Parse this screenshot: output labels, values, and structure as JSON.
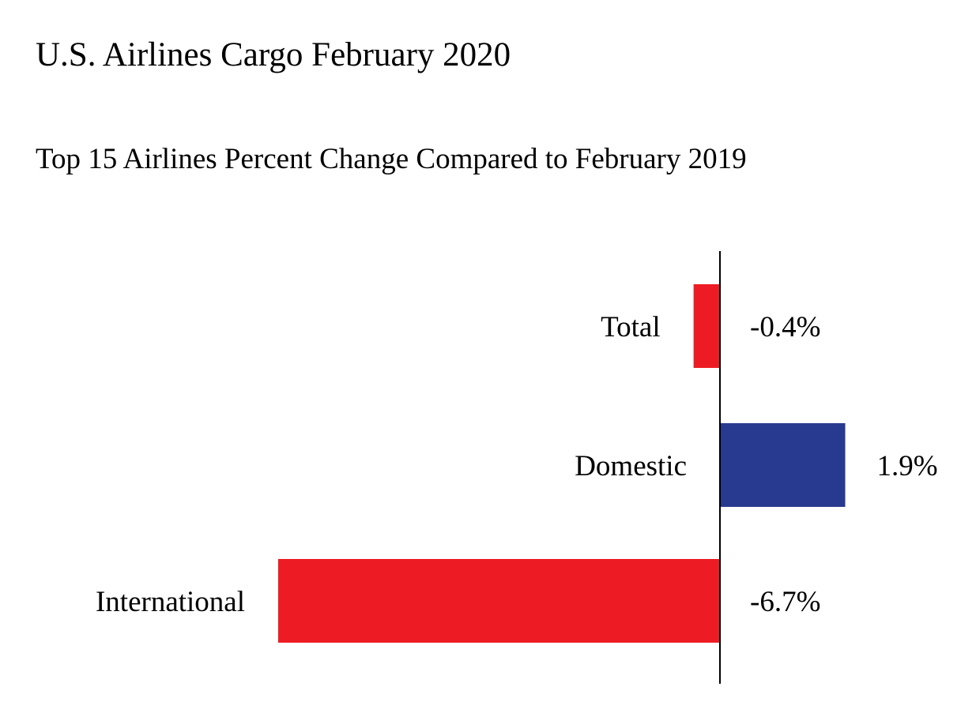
{
  "chart_data": {
    "type": "bar",
    "orientation": "horizontal",
    "title": "U.S. Airlines Cargo February 2020",
    "subtitle": "Top 15 Airlines Percent Change Compared to February 2019",
    "categories": [
      "Total",
      "Domestic",
      "International"
    ],
    "values": [
      -0.4,
      1.9,
      -6.7
    ],
    "value_labels": [
      "-0.4%",
      "1.9%",
      "-6.7%"
    ],
    "units": "%",
    "xlim": [
      -6.7,
      1.9
    ],
    "grid": false,
    "legend": "none",
    "colors": {
      "negative": "#ed1c24",
      "positive": "#283a8f",
      "axis": "#000000"
    }
  }
}
